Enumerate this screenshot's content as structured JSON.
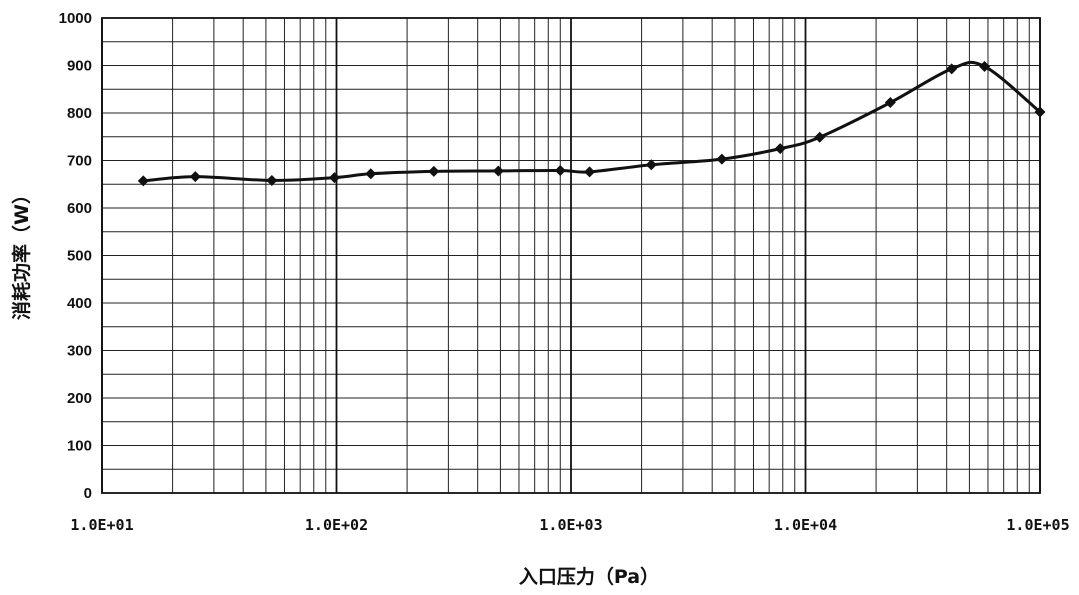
{
  "chart_data": {
    "type": "line",
    "xlabel": "入口压力（Pa）",
    "ylabel": "消耗功率（W）",
    "x_scale": "log",
    "xlim": [
      10,
      100000
    ],
    "ylim": [
      0,
      1000
    ],
    "grid": true,
    "x_tick_values": [
      10,
      100,
      1000,
      10000,
      100000
    ],
    "x_tick_labels": [
      "1.0E+01",
      "1.0E+02",
      "1.0E+03",
      "1.0E+04",
      "1.0E+05"
    ],
    "y_tick_values": [
      0,
      100,
      200,
      300,
      400,
      500,
      600,
      700,
      800,
      900,
      1000
    ],
    "y_tick_labels": [
      "0",
      "100",
      "200",
      "300",
      "400",
      "500",
      "600",
      "700",
      "800",
      "900",
      "1000"
    ],
    "series": [
      {
        "x": [
          15,
          25,
          53,
          98,
          140,
          260,
          490,
          900,
          1200,
          2200,
          4400,
          7800,
          11500,
          23000,
          42000,
          58000,
          100000
        ],
        "y": [
          657,
          666,
          658,
          664,
          672,
          677,
          678,
          679,
          676,
          691,
          703,
          725,
          749,
          822,
          893,
          898,
          802
        ]
      }
    ]
  }
}
